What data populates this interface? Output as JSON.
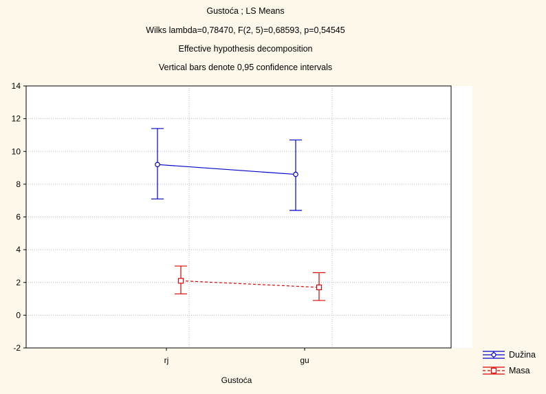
{
  "chart_data": {
    "type": "line",
    "title": "Gustoća ; LS Means",
    "subtitle_lines": [
      "Wilks lambda=0,78470, F(2, 5)=0,68593, p=0,54545",
      "Effective hypothesis decomposition",
      "Vertical bars denote 0,95 confidence intervals"
    ],
    "xlabel": "Gustoća",
    "ylabel": "",
    "categories": [
      "rj",
      "gu"
    ],
    "ylim": [
      -2,
      14
    ],
    "yticks": [
      "-2",
      "0",
      "2",
      "4",
      "6",
      "8",
      "10",
      "12",
      "14"
    ],
    "grid": true,
    "legend_position": "bottom-right",
    "series": [
      {
        "name": "Dužina",
        "color": "#0000cc",
        "marker": "circle",
        "line_style": "solid",
        "values": [
          9.2,
          8.6
        ],
        "ci_low": [
          7.1,
          6.4
        ],
        "ci_high": [
          11.4,
          10.7
        ]
      },
      {
        "name": "Masa",
        "color": "#e00000",
        "marker": "square",
        "line_style": "dashed",
        "values": [
          2.1,
          1.7
        ],
        "ci_low": [
          1.3,
          0.9
        ],
        "ci_high": [
          3.0,
          2.6
        ]
      }
    ]
  }
}
